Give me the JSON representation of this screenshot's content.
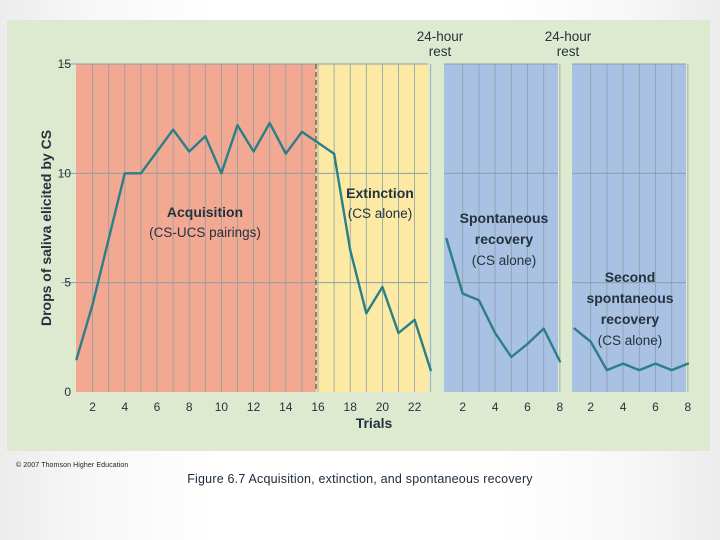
{
  "chart_data": {
    "type": "line",
    "ylabel": "Drops of saliva elicited by CS",
    "xlabel": "Trials",
    "ylim": [
      0,
      15
    ],
    "yticks": [
      0,
      5,
      10,
      15
    ],
    "grid": true,
    "colors": {
      "acquisition": "#f3a892",
      "extinction": "#fce9a3",
      "spontaneous": "#a9c1e3",
      "second": "#a9c1e3",
      "line": "#2a7f88",
      "grid": "#8aa0a6",
      "divider": "#555555"
    },
    "panels": [
      {
        "id": "acquisition",
        "label": "Acquisition",
        "sublabel": "(CS-UCS pairings)",
        "x": [
          1,
          2,
          3,
          4,
          5,
          6,
          7,
          8,
          9,
          10,
          11,
          12,
          13,
          14,
          15,
          16
        ],
        "values": [
          1.5,
          4,
          7,
          10,
          10,
          11,
          12,
          11,
          11.7,
          10,
          12.2,
          11,
          12.3,
          10.9,
          11.9,
          11.4
        ]
      },
      {
        "id": "extinction",
        "label": "Extinction",
        "sublabel": "(CS alone)",
        "x": [
          16,
          17,
          18,
          19,
          20,
          21,
          22,
          23
        ],
        "values": [
          11.4,
          10.9,
          6.5,
          3.6,
          4.8,
          2.7,
          3.3,
          1.0
        ]
      },
      {
        "id": "spontaneous",
        "label_lines": [
          "Spontaneous",
          "recovery"
        ],
        "sublabel": "(CS alone)",
        "rest_label": [
          "24-hour",
          "rest"
        ],
        "x": [
          1,
          2,
          3,
          4,
          5,
          6,
          7,
          8
        ],
        "values": [
          7,
          4.5,
          4.2,
          2.7,
          1.6,
          2.2,
          2.9,
          1.4
        ]
      },
      {
        "id": "second",
        "label_lines": [
          "Second",
          "spontaneous",
          "recovery"
        ],
        "sublabel": "(CS alone)",
        "rest_label": [
          "24-hour",
          "rest"
        ],
        "x": [
          1,
          2,
          3,
          4,
          5,
          6,
          7,
          8
        ],
        "values": [
          2.9,
          2.3,
          1.0,
          1.3,
          1.0,
          1.3,
          1.0,
          1.3
        ]
      }
    ],
    "xtick_labels": {
      "main": [
        "2",
        "4",
        "6",
        "8",
        "10",
        "12",
        "14",
        "16",
        "18",
        "20",
        "22"
      ],
      "spontaneous": [
        "2",
        "4",
        "6",
        "8"
      ],
      "second": [
        "2",
        "4",
        "6",
        "8"
      ]
    }
  },
  "copyright": "© 2007 Thomson Higher Education",
  "caption": "Figure 6.7 Acquisition, extinction, and spontaneous recovery"
}
